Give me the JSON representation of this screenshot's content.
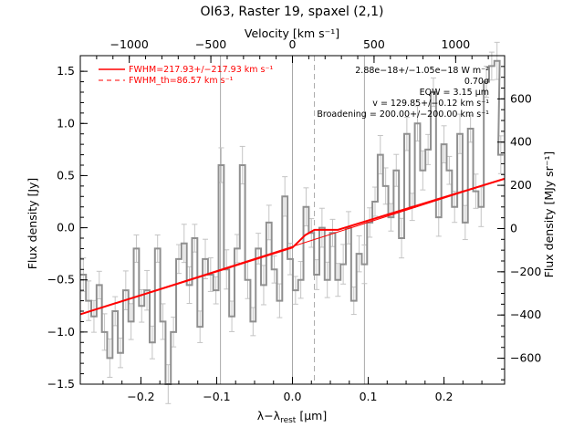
{
  "chart_data": {
    "type": "line",
    "title": "OI63, Raster 19, spaxel (2,1)",
    "xlabel": "λ−λ",
    "xlabel_sub": "rest",
    "xlabel_unit": " [μm]",
    "ylabel": "Flux density [Jy]",
    "ylabel_right": "Flux density [MJy sr⁻¹]",
    "top_label": "Velocity [km s⁻¹]",
    "xlim": [
      -0.28,
      0.28
    ],
    "ylim": [
      -1.5,
      1.65
    ],
    "vlim": [
      -1300,
      1300
    ],
    "y2lim": [
      -720,
      800
    ],
    "x_ticks": [
      -0.2,
      -0.1,
      0.0,
      0.1,
      0.2
    ],
    "x_tick_labels": [
      "−0.2",
      "−0.1",
      "0.0",
      "0.1",
      "0.2"
    ],
    "y_ticks": [
      -1.5,
      -1.0,
      -0.5,
      0.0,
      0.5,
      1.0,
      1.5
    ],
    "y_tick_labels": [
      "−1.5",
      "−1.0",
      "−0.5",
      "0.0",
      "0.5",
      "1.0",
      "1.5"
    ],
    "v_ticks": [
      -1000,
      -500,
      0,
      500,
      1000
    ],
    "v_tick_labels": [
      "−1000",
      "−500",
      "0",
      "500",
      "1000"
    ],
    "y2_ticks": [
      -600,
      -400,
      -200,
      0,
      200,
      400,
      600
    ],
    "y2_tick_labels": [
      "−600",
      "−400",
      "−200",
      "0",
      "200",
      "400",
      "600"
    ],
    "vertical_lines_solid": [
      -0.095,
      0.0,
      0.095
    ],
    "vertical_line_dashed": 0.029,
    "legend": [
      {
        "label": "FWHM=217.93+/−217.93 km s⁻¹",
        "style": "solid",
        "color": "#ff0000"
      },
      {
        "label": "FWHM_th=86.57 km s⁻¹",
        "style": "dashed",
        "color": "#ff0000"
      }
    ],
    "annotations": [
      "2.88e−18+/−1.05e−18 W m⁻²",
      "0.70σ",
      "EQW = 3.15 μm",
      "v = 129.85+/−0.12 km s⁻¹",
      "Broadening = 200.00+/−200.00 km s⁻¹"
    ],
    "series": [
      {
        "style": "steps",
        "color": "#909090",
        "x": [
          -0.276,
          -0.269,
          -0.262,
          -0.255,
          -0.248,
          -0.241,
          -0.234,
          -0.227,
          -0.22,
          -0.213,
          -0.206,
          -0.199,
          -0.192,
          -0.185,
          -0.178,
          -0.171,
          -0.164,
          -0.157,
          -0.15,
          -0.143,
          -0.136,
          -0.129,
          -0.122,
          -0.115,
          -0.108,
          -0.101,
          -0.094,
          -0.087,
          -0.08,
          -0.073,
          -0.066,
          -0.059,
          -0.052,
          -0.045,
          -0.038,
          -0.031,
          -0.024,
          -0.017,
          -0.01,
          -0.003,
          0.004,
          0.011,
          0.018,
          0.025,
          0.032,
          0.039,
          0.046,
          0.053,
          0.06,
          0.067,
          0.074,
          0.081,
          0.088,
          0.095,
          0.102,
          0.109,
          0.116,
          0.123,
          0.13,
          0.137,
          0.144,
          0.151,
          0.158,
          0.165,
          0.172,
          0.179,
          0.186,
          0.193,
          0.2,
          0.207,
          0.214,
          0.221,
          0.228,
          0.235,
          0.242,
          0.249,
          0.256,
          0.263,
          0.27,
          0.275
        ],
        "y": [
          -0.45,
          -0.7,
          -0.85,
          -0.55,
          -1.0,
          -1.25,
          -0.8,
          -1.2,
          -0.6,
          -0.9,
          -0.2,
          -0.75,
          -0.6,
          -1.1,
          -0.2,
          -0.9,
          -1.5,
          -1.0,
          -0.3,
          -0.15,
          -0.55,
          -0.1,
          -0.95,
          -0.3,
          -0.45,
          -0.6,
          0.6,
          -0.4,
          -0.85,
          -0.2,
          0.6,
          -0.5,
          -0.9,
          -0.2,
          -0.55,
          0.05,
          -0.4,
          -0.7,
          0.3,
          -0.3,
          -0.6,
          -0.5,
          0.2,
          -0.05,
          -0.45,
          0.0,
          -0.5,
          -0.05,
          -0.5,
          -0.35,
          0.0,
          -0.7,
          -0.25,
          -0.35,
          0.05,
          0.25,
          0.7,
          0.4,
          0.1,
          0.55,
          -0.1,
          0.9,
          0.2,
          1.0,
          0.55,
          0.75,
          1.3,
          0.1,
          0.8,
          0.55,
          0.2,
          0.9,
          0.05,
          0.95,
          0.35,
          0.2,
          1.4,
          1.55,
          1.6,
          0.7
        ]
      },
      {
        "name": "fit",
        "style": "line",
        "color": "#ff0000",
        "x": [
          -0.28,
          0.0,
          0.017,
          0.029,
          0.041,
          0.06,
          0.28
        ],
        "y": [
          -0.83,
          -0.19,
          -0.07,
          -0.02,
          -0.02,
          -0.02,
          0.47
        ]
      },
      {
        "name": "continuum",
        "style": "line",
        "color": "#ff0000",
        "x": [
          -0.28,
          0.28
        ],
        "y": [
          -0.83,
          0.47
        ]
      }
    ]
  }
}
